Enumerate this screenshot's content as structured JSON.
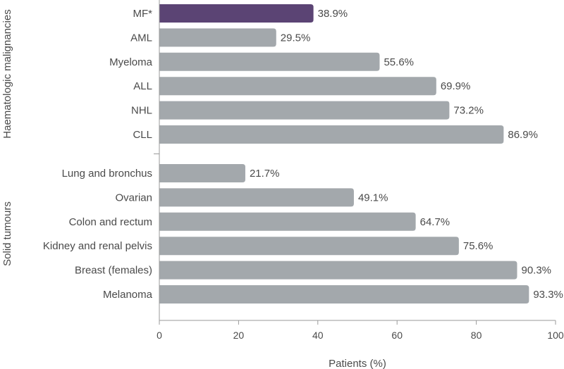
{
  "chart_data": {
    "type": "bar",
    "orientation": "horizontal",
    "xlabel": "Patients (%)",
    "xlim": [
      0,
      100
    ],
    "xticks": [
      0,
      20,
      40,
      60,
      80,
      100
    ],
    "grid": false,
    "bar_color": "#a3a8ac",
    "highlight_color": "#5b4474",
    "groups": [
      {
        "name": "Haematologic malignancies",
        "bars": [
          {
            "category": "MF*",
            "value": 38.9,
            "label": "38.9%",
            "highlight": true
          },
          {
            "category": "AML",
            "value": 29.5,
            "label": "29.5%"
          },
          {
            "category": "Myeloma",
            "value": 55.6,
            "label": "55.6%"
          },
          {
            "category": "ALL",
            "value": 69.9,
            "label": "69.9%"
          },
          {
            "category": "NHL",
            "value": 73.2,
            "label": "73.2%"
          },
          {
            "category": "CLL",
            "value": 86.9,
            "label": "86.9%"
          }
        ]
      },
      {
        "name": "Solid tumours",
        "bars": [
          {
            "category": "Lung and bronchus",
            "value": 21.7,
            "label": "21.7%"
          },
          {
            "category": "Ovarian",
            "value": 49.1,
            "label": "49.1%"
          },
          {
            "category": "Colon and rectum",
            "value": 64.7,
            "label": "64.7%"
          },
          {
            "category": "Kidney and renal pelvis",
            "value": 75.6,
            "label": "75.6%"
          },
          {
            "category": "Breast (females)",
            "value": 90.3,
            "label": "90.3%"
          },
          {
            "category": "Melanoma",
            "value": 93.3,
            "label": "93.3%"
          }
        ]
      }
    ]
  }
}
